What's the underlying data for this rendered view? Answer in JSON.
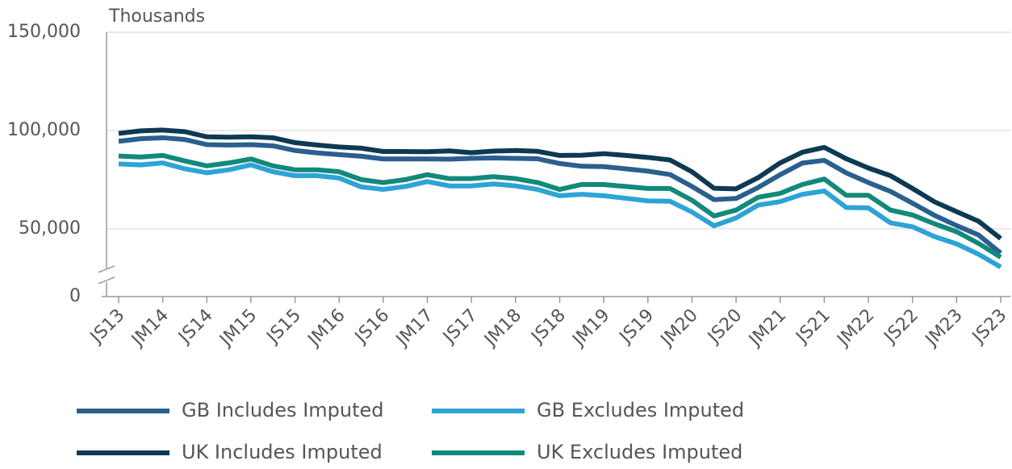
{
  "chart_data": {
    "type": "line",
    "y_axis_label": "Thousands",
    "categories": [
      "JS13",
      null,
      "JM14",
      null,
      "JS14",
      null,
      "JM15",
      null,
      "JS15",
      null,
      "JM16",
      null,
      "JS16",
      null,
      "JM17",
      null,
      "JS17",
      null,
      "JM18",
      null,
      "JS18",
      null,
      "JM19",
      null,
      "JS19",
      null,
      "JM20",
      null,
      "JS20",
      null,
      "JM21",
      null,
      "JS21",
      null,
      "JM22",
      null,
      "JS22",
      null,
      "JM23",
      null,
      "JS23"
    ],
    "series": [
      {
        "name": "GB Includes Imputed",
        "color": "#2a5f8f",
        "values": [
          94500,
          95800,
          96300,
          95400,
          92800,
          92600,
          92800,
          92200,
          89800,
          88600,
          87700,
          86900,
          85500,
          85500,
          85500,
          85400,
          85800,
          86000,
          85800,
          85600,
          83200,
          81800,
          81600,
          80500,
          79300,
          77600,
          71500,
          64800,
          65400,
          71000,
          77500,
          83400,
          84800,
          78400,
          73500,
          69000,
          63000,
          56800,
          51600,
          46800,
          37600
        ]
      },
      {
        "name": "GB Excludes Imputed",
        "color": "#2ea3d5",
        "values": [
          83000,
          82500,
          83500,
          80500,
          78500,
          80000,
          82500,
          79000,
          77000,
          77000,
          75800,
          71300,
          70000,
          71500,
          74000,
          71800,
          71800,
          72800,
          71800,
          70000,
          66800,
          67500,
          66800,
          65500,
          64200,
          64000,
          58500,
          51500,
          55500,
          62000,
          63800,
          67500,
          69200,
          60800,
          60600,
          53000,
          51000,
          46000,
          42300,
          37000,
          30500
        ]
      },
      {
        "name": "UK Includes Imputed",
        "color": "#0d3a52",
        "values": [
          98500,
          99800,
          100200,
          99400,
          96800,
          96600,
          96800,
          96300,
          93800,
          92600,
          91600,
          91000,
          89300,
          89300,
          89200,
          89600,
          88700,
          89500,
          89800,
          89400,
          87300,
          87400,
          88200,
          87300,
          86300,
          85000,
          79000,
          70600,
          70300,
          76000,
          83500,
          88900,
          91400,
          85600,
          80900,
          77000,
          70500,
          63700,
          58700,
          53800,
          45000
        ]
      },
      {
        "name": "UK Excludes Imputed",
        "color": "#12897a",
        "values": [
          87000,
          86500,
          87300,
          84500,
          82000,
          83500,
          85500,
          82000,
          80000,
          80000,
          79000,
          75000,
          73500,
          75000,
          77500,
          75500,
          75500,
          76500,
          75500,
          73500,
          70000,
          72500,
          72500,
          71500,
          70500,
          70500,
          64500,
          56500,
          59500,
          66000,
          68000,
          72500,
          75300,
          67000,
          67000,
          59500,
          57000,
          52500,
          48500,
          42500,
          35500
        ]
      }
    ],
    "ylim": [
      0,
      150000
    ],
    "y_axis_break": [
      0,
      20000
    ],
    "yticks": [
      {
        "value": 0,
        "label": "0"
      },
      {
        "value": 50000,
        "label": "50,000"
      },
      {
        "value": 100000,
        "label": "100,000"
      },
      {
        "value": 150000,
        "label": "150,000"
      }
    ],
    "grid": true
  }
}
